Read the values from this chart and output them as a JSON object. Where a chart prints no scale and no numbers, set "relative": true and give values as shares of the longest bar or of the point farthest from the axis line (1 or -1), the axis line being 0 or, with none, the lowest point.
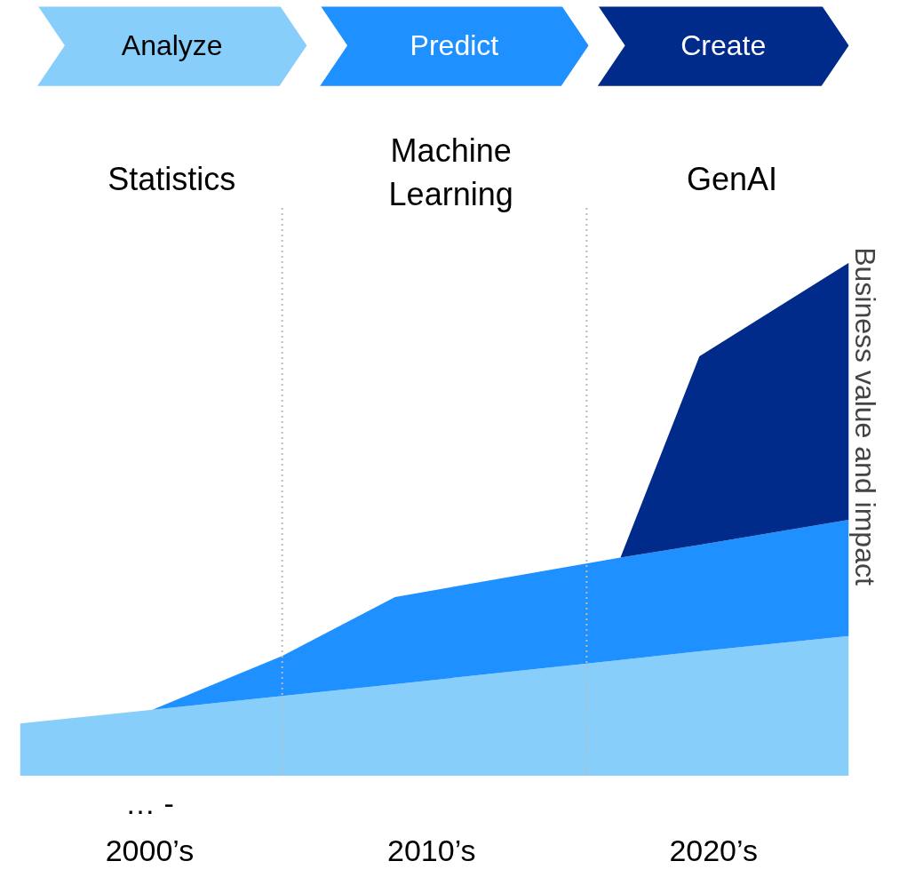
{
  "chart_data": {
    "type": "area",
    "stacked": true,
    "relative": true,
    "x": [
      1995.4,
      2000.1,
      2004.7,
      2008.7,
      2016.7,
      2019.5,
      2024.8
    ],
    "xlim": [
      1995.4,
      2024.8
    ],
    "xticks": [
      {
        "value": 2000,
        "label": "2000’s"
      },
      {
        "value": 2010,
        "label": "2010’s"
      },
      {
        "value": 2020,
        "label": "2020’s"
      }
    ],
    "ylabel": "Business value and impact",
    "series": [
      {
        "color": "#87cefa",
        "values": [
          0.1,
          0.127,
          0.154,
          0.177,
          0.224,
          0.241,
          0.271
        ]
      },
      {
        "color": "#1e90ff",
        "values": [
          0,
          0,
          0.078,
          0.17,
          0.2,
          0.208,
          0.227
        ]
      },
      {
        "color": "#002b8a",
        "values": [
          0,
          0,
          0,
          0,
          0,
          0.368,
          0.502
        ]
      }
    ],
    "ref_lines": [
      {
        "axis": "x",
        "value": 2004.7,
        "color": "#bbbbbb",
        "line_style": "dotted"
      },
      {
        "axis": "x",
        "value": 2015.5,
        "color": "#bbbbbb",
        "line_style": "dotted"
      }
    ],
    "annotations": [
      "Analyze",
      "Predict",
      "Create",
      "Statistics",
      "Machine\nLearning",
      "GenAI",
      "… -"
    ],
    "grid": false
  }
}
